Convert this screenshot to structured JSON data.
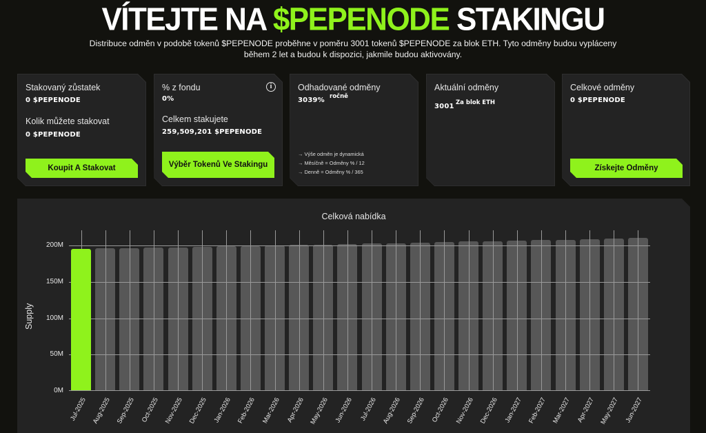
{
  "header": {
    "title_pre": "VÍTEJTE NA ",
    "title_accent": "$PEPENODE",
    "title_post": " STAKINGU",
    "subtitle": "Distribuce odměn v podobě tokenů $PEPENODE proběhne v poměru 3001 tokenů $PEPENODE za blok ETH. Tyto odměny budou vypláceny během 2 let a budou k dispozici, jakmile budou aktivovány."
  },
  "colors": {
    "accent": "#8ff21c",
    "background": "#12120e",
    "card": "#232323",
    "bar": "#575757",
    "grid": "#9a9a9a"
  },
  "cards": {
    "balance": {
      "staked_label": "Stakovaný zůstatek",
      "staked_value": "0 $PEPENODE",
      "available_label": "Kolik můžete stakovat",
      "available_value": "0 $PEPENODE",
      "button": "Koupit A Stakovat"
    },
    "pool": {
      "share_label": "% z fondu",
      "share_value": "0%",
      "info_icon": "i",
      "total_label": "Celkem stakujete",
      "total_value": "259,509,201 $PEPENODE",
      "button": "Výběr Tokenů Ve Stakingu"
    },
    "estimated": {
      "label": "Odhadované odměny",
      "value": "3039%",
      "suffix": "ročně",
      "notes": [
        "→ Výše odměn je dynamická",
        "→ Měsíčně = Odměny % / 12",
        "→ Denně = Odměny % / 365"
      ]
    },
    "current": {
      "label": "Aktuální odměny",
      "value": "3001",
      "suffix": "Za blok ETH"
    },
    "total": {
      "label": "Celkové odměny",
      "value": "0 $PEPENODE",
      "button": "Získejte Odměny"
    }
  },
  "chart_data": {
    "type": "bar",
    "title": "Celková nabídka",
    "xlabel": "",
    "ylabel": "Supply",
    "ylim": [
      0,
      210000000
    ],
    "y_ticks": [
      "0M",
      "50M",
      "100M",
      "150M",
      "200M"
    ],
    "grid": true,
    "highlight_index": 0,
    "categories": [
      "Jul-2025",
      "Aug-2025",
      "Sep-2025",
      "Oct-2025",
      "Nov-2025",
      "Dec-2025",
      "Jan-2026",
      "Feb-2026",
      "Mar-2026",
      "Apr-2026",
      "May-2026",
      "Jun-2026",
      "Jul-2026",
      "Aug-2026",
      "Sep-2026",
      "Oct-2026",
      "Nov-2026",
      "Dec-2026",
      "Jan-2027",
      "Feb-2027",
      "Mar-2027",
      "Apr-2027",
      "May-2027",
      "Jun-2027"
    ],
    "values": [
      195000000,
      196000000,
      196300000,
      197000000,
      197500000,
      198000000,
      199000000,
      199500000,
      200000000,
      200500000,
      201000000,
      202000000,
      202500000,
      203000000,
      204000000,
      205000000,
      205500000,
      206000000,
      207000000,
      207500000,
      208000000,
      209000000,
      209500000,
      210000000
    ]
  }
}
